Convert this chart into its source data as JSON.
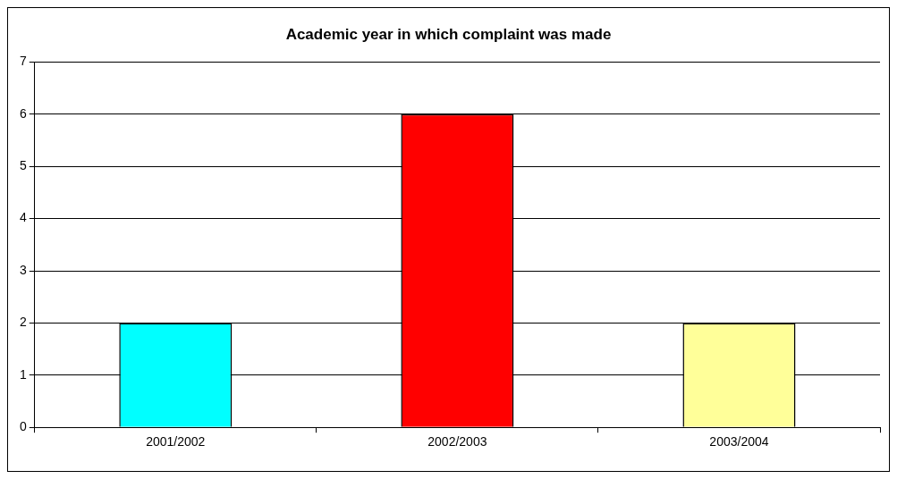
{
  "chart_data": {
    "type": "bar",
    "title": "Academic year in which complaint was made",
    "categories": [
      "2001/2002",
      "2002/2003",
      "2003/2004"
    ],
    "values": [
      2,
      6,
      2
    ],
    "colors": [
      "#00ffff",
      "#ff0000",
      "#ffff99"
    ],
    "ylim": [
      0,
      7
    ],
    "yticks": [
      0,
      1,
      2,
      3,
      4,
      5,
      6,
      7
    ],
    "grid": "y",
    "legend": false
  }
}
